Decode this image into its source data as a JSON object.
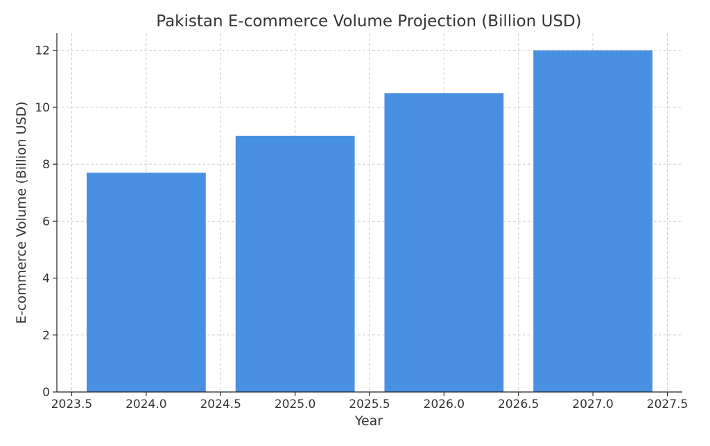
{
  "chart_data": {
    "type": "bar",
    "title": "Pakistan E-commerce Volume Projection (Billion USD)",
    "xlabel": "Year",
    "ylabel": "E-commerce Volume (Billion USD)",
    "x": [
      2024,
      2025,
      2026,
      2027
    ],
    "values": [
      7.7,
      9.0,
      10.5,
      12.0
    ],
    "bar_width": 0.8,
    "bar_color": "#4a90e2",
    "xlim": [
      2023.4,
      2027.6
    ],
    "ylim": [
      0,
      12.6
    ],
    "xticks": [
      "2023.5",
      "2024.0",
      "2024.5",
      "2025.0",
      "2025.5",
      "2026.0",
      "2026.5",
      "2027.0",
      "2027.5"
    ],
    "yticks": [
      "0",
      "2",
      "4",
      "6",
      "8",
      "10",
      "12"
    ],
    "grid": true
  }
}
